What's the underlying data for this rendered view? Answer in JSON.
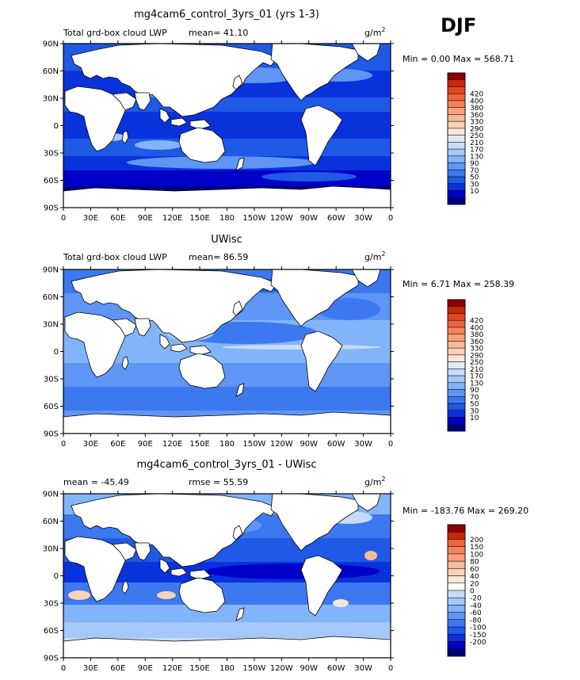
{
  "season": "DJF",
  "lon_ticks": [
    "0",
    "30E",
    "60E",
    "90E",
    "120E",
    "150E",
    "180",
    "150W",
    "120W",
    "90W",
    "60W",
    "30W",
    "0"
  ],
  "lat_ticks": [
    "90N",
    "60N",
    "30N",
    "0",
    "30S",
    "60S",
    "90S"
  ],
  "palette_abs": [
    "#00007f",
    "#0000c8",
    "#0a32dc",
    "#1e5ae6",
    "#3c78f0",
    "#5f96f5",
    "#82b4fa",
    "#a5c8fa",
    "#c8dcfa",
    "#e1ebfa",
    "#fae6d7",
    "#fad2b9",
    "#fab996",
    "#faa078",
    "#f58259",
    "#f0643c",
    "#e6461e",
    "#c8280a",
    "#8c0000"
  ],
  "palette_diff": [
    "#00007f",
    "#0000c8",
    "#0a32dc",
    "#1e5ae6",
    "#3c78f0",
    "#5f96f5",
    "#82b4fa",
    "#a5c8fa",
    "#c8dcfa",
    "#ffffff",
    "#fae6d7",
    "#fad2b9",
    "#fab996",
    "#faa078",
    "#f58259",
    "#f0643c",
    "#c8280a",
    "#8c0000"
  ],
  "panels": [
    {
      "title": "mg4cam6_control_3yrs_01 (yrs 1-3)",
      "left_label": "Total grd-box cloud LWP",
      "mean_text": "mean=  41.10",
      "units": "g/m",
      "min_max": "Min =    0.00  Max = 568.71",
      "colorbar_labels": [
        "10",
        "30",
        "50",
        "70",
        "90",
        "130",
        "170",
        "210",
        "250",
        "290",
        "330",
        "360",
        "380",
        "400",
        "420"
      ]
    },
    {
      "title": "UWisc",
      "left_label": "Total grd-box cloud LWP",
      "mean_text": "mean=  86.59",
      "units": "g/m",
      "min_max": "Min =    6.71  Max = 258.39",
      "colorbar_labels": [
        "10",
        "30",
        "50",
        "70",
        "90",
        "130",
        "170",
        "210",
        "250",
        "290",
        "330",
        "360",
        "380",
        "400",
        "420"
      ]
    },
    {
      "title": "mg4cam6_control_3yrs_01 - UWisc",
      "left_label": "mean = -45.49",
      "mid_label": "rmse =   55.59",
      "units": "g/m",
      "min_max": "Min = -183.76  Max = 269.20",
      "colorbar_labels": [
        "-200",
        "-150",
        "-100",
        "-80",
        "-60",
        "-40",
        "-20",
        "0",
        "20",
        "40",
        "60",
        "80",
        "100",
        "150",
        "200"
      ]
    }
  ]
}
